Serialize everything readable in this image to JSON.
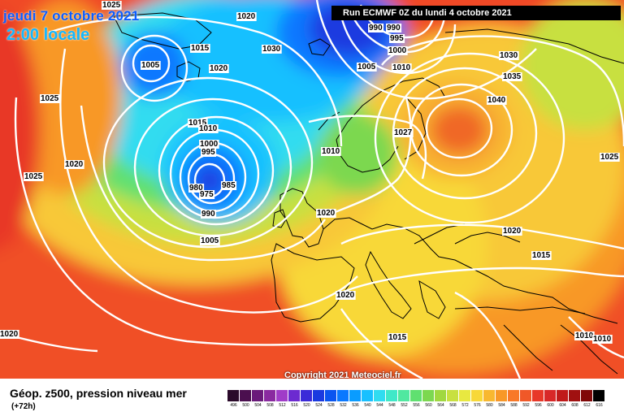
{
  "header": {
    "date": "jeudi 7 octobre 2021",
    "time": "2:00 locale",
    "run": "Run ECMWF 0Z du lundi 4 octobre 2021"
  },
  "copyright": "Copyright 2021 Meteociel.fr",
  "legend": {
    "title": "Géop. z500, pression niveau mer",
    "forecast": "(+72h)",
    "levels": [
      "496",
      "500",
      "504",
      "508",
      "512",
      "516",
      "520",
      "524",
      "528",
      "532",
      "536",
      "540",
      "544",
      "548",
      "552",
      "556",
      "560",
      "564",
      "568",
      "572",
      "576",
      "580",
      "584",
      "588",
      "592",
      "596",
      "600",
      "604",
      "608",
      "612",
      "616"
    ],
    "colors": [
      "#2a0a2a",
      "#4b0f4f",
      "#6a1a7a",
      "#8a2aa0",
      "#a03cc8",
      "#6c2ad0",
      "#3a2ad8",
      "#1a3ae0",
      "#0a55f0",
      "#0a78ff",
      "#0a9cff",
      "#18c0ff",
      "#30dcf0",
      "#40e8c8",
      "#50e8a0",
      "#60e070",
      "#7cd850",
      "#a0d840",
      "#c8e040",
      "#e8e840",
      "#f8d838",
      "#f8b830",
      "#f89828",
      "#f87828",
      "#f05828",
      "#e83828",
      "#d82828",
      "#c01a1a",
      "#a01010",
      "#800808",
      "#000000"
    ]
  },
  "isobars": [
    {
      "label": "1025"
    },
    {
      "label": "1020"
    },
    {
      "label": "1005"
    },
    {
      "label": "1015"
    },
    {
      "label": "1020"
    },
    {
      "label": "1030"
    },
    {
      "label": "1025"
    },
    {
      "label": "1025"
    },
    {
      "label": "1020"
    },
    {
      "label": "1015"
    },
    {
      "label": "1010"
    },
    {
      "label": "1000"
    },
    {
      "label": "995"
    },
    {
      "label": "980"
    },
    {
      "label": "975"
    },
    {
      "label": "985"
    },
    {
      "label": "990"
    },
    {
      "label": "1005"
    },
    {
      "label": "1010"
    },
    {
      "label": "1020"
    },
    {
      "label": "1027"
    },
    {
      "label": "1005"
    },
    {
      "label": "1010"
    },
    {
      "label": "990"
    },
    {
      "label": "990"
    },
    {
      "label": "995"
    },
    {
      "label": "1000"
    },
    {
      "label": "1030"
    },
    {
      "label": "1035"
    },
    {
      "label": "1040"
    },
    {
      "label": "1025"
    },
    {
      "label": "1020"
    },
    {
      "label": "1015"
    },
    {
      "label": "1020"
    },
    {
      "label": "1015"
    },
    {
      "label": "1010"
    },
    {
      "label": "1010"
    },
    {
      "label": "1020"
    }
  ]
}
